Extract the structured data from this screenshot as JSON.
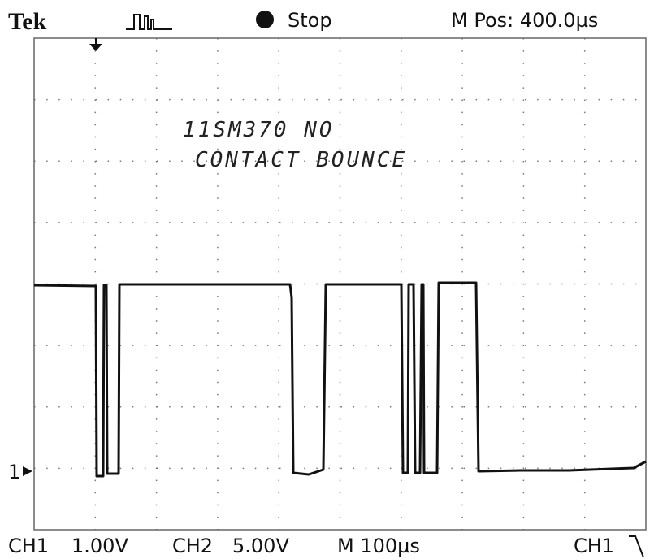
{
  "header": {
    "brand": "Tek",
    "status": "Stop",
    "position": "M Pos: 400.0µs"
  },
  "annotation": {
    "lines": [
      "11SM370 NO",
      "CONTACT BOUNCE"
    ]
  },
  "channel_marker": "1",
  "footer": {
    "ch1_label": "CH1",
    "ch1_scale": "1.00V",
    "ch2_label": "CH2",
    "ch2_scale": "5.00V",
    "timebase": "M 100µs",
    "trigger_source": "CH1"
  }
}
